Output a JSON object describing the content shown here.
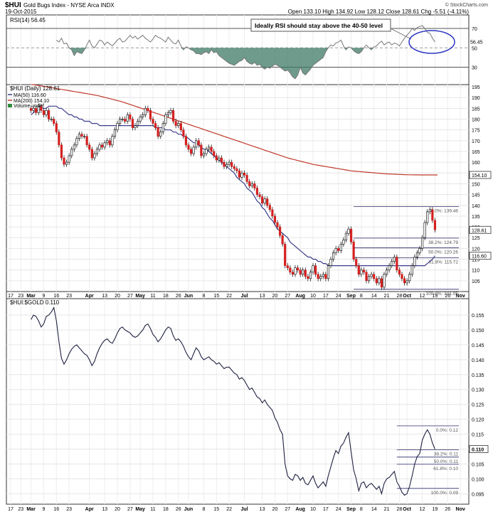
{
  "header": {
    "symbol": "$HUI",
    "name": "Gold Bugs Index - NYSE Arca INDX",
    "date": "19-Oct-2015",
    "ohlc": "Open 133.10  High 134.92  Low 128.12  Close 128.61  Chg -5.51 (-4.11%)",
    "watermark": "© StockCharts.com"
  },
  "annotation": "Ideally RSI should stay above the 40-50 level",
  "x_axis_labels": [
    {
      "label": "17",
      "i": 0
    },
    {
      "label": "23",
      "i": 4
    },
    {
      "label": "Mar",
      "i": 8
    },
    {
      "label": "9",
      "i": 13
    },
    {
      "label": "16",
      "i": 18
    },
    {
      "label": "23",
      "i": 23
    },
    {
      "label": "Apr",
      "i": 31
    },
    {
      "label": "13",
      "i": 37
    },
    {
      "label": "20",
      "i": 42
    },
    {
      "label": "27",
      "i": 47
    },
    {
      "label": "May",
      "i": 51
    },
    {
      "label": "11",
      "i": 56
    },
    {
      "label": "18",
      "i": 61
    },
    {
      "label": "26",
      "i": 66
    },
    {
      "label": "Jun",
      "i": 70
    },
    {
      "label": "8",
      "i": 76
    },
    {
      "label": "15",
      "i": 81
    },
    {
      "label": "22",
      "i": 86
    },
    {
      "label": "Jul",
      "i": 92
    },
    {
      "label": "13",
      "i": 99
    },
    {
      "label": "20",
      "i": 104
    },
    {
      "label": "27",
      "i": 109
    },
    {
      "label": "Aug",
      "i": 114
    },
    {
      "label": "10",
      "i": 119
    },
    {
      "label": "17",
      "i": 124
    },
    {
      "label": "24",
      "i": 129
    },
    {
      "label": "Sep",
      "i": 134
    },
    {
      "label": "8",
      "i": 138
    },
    {
      "label": "14",
      "i": 143
    },
    {
      "label": "21",
      "i": 148
    },
    {
      "label": "28",
      "i": 153
    },
    {
      "label": "Oct",
      "i": 156
    },
    {
      "label": "12",
      "i": 162
    },
    {
      "label": "19",
      "i": 167
    },
    {
      "label": "26",
      "i": 172
    },
    {
      "label": "Nov",
      "i": 177
    }
  ],
  "chart_data": [
    {
      "type": "line",
      "title": "RSI(14) 56.45",
      "ylim": [
        12,
        84
      ],
      "ticks": [
        30,
        50,
        70
      ],
      "reference_lines": [
        30,
        50,
        70
      ],
      "last_value": "56.45",
      "series": [
        {
          "name": "RSI(14)",
          "values": [
            58,
            56,
            60,
            54,
            55,
            50,
            48,
            42,
            46,
            45,
            44,
            48,
            53,
            58,
            52,
            50,
            54,
            58,
            57,
            53,
            56,
            54,
            52,
            55,
            58,
            60,
            56,
            57,
            60,
            63,
            60,
            62,
            59,
            61,
            63,
            60,
            58,
            56,
            59,
            63,
            61,
            60,
            58,
            56,
            61,
            58,
            55,
            54,
            58,
            52,
            48,
            51,
            50,
            48,
            47,
            44,
            44,
            43,
            45,
            46,
            44,
            48,
            45,
            46,
            42,
            40,
            38,
            36,
            34,
            33,
            32,
            34,
            36,
            37,
            40,
            36,
            34,
            33,
            35,
            32,
            33,
            30,
            28,
            30,
            29,
            31,
            33,
            32,
            30,
            28,
            26,
            27,
            24,
            20,
            18,
            22,
            30,
            24,
            22,
            25,
            28,
            32,
            34,
            36,
            38,
            40,
            46,
            50,
            53,
            52,
            55,
            56,
            58,
            52,
            48,
            51,
            50,
            47,
            45,
            44,
            46,
            50,
            53,
            50,
            48,
            51,
            52,
            55,
            57,
            53,
            55,
            56,
            53,
            55,
            54,
            52,
            56,
            60,
            63,
            66,
            70,
            68,
            71,
            72,
            73,
            70,
            66,
            65,
            60,
            56
          ]
        }
      ]
    },
    {
      "type": "candlestick",
      "title": "$HUI (Daily) 128.61",
      "legend": [
        "MA(50) 116.60",
        "MA(200) 154.10",
        "Volume undef"
      ],
      "ylim": [
        100,
        196
      ],
      "ticks": [
        105,
        110,
        115,
        120,
        125,
        130,
        135,
        140,
        145,
        150,
        155,
        160,
        165,
        170,
        175,
        180,
        185,
        190,
        195
      ],
      "fib_levels": [
        {
          "label": "0.0%: 139.46",
          "value": 139.46
        },
        {
          "label": "38.2%: 124.79",
          "value": 124.79
        },
        {
          "label": "50.0%: 120.26",
          "value": 120.26
        },
        {
          "label": "61.8%: 115.72",
          "value": 115.72
        },
        {
          "label": "100.0%: 101.05",
          "value": 101.05
        }
      ],
      "last_labels": [
        {
          "text": "154.10",
          "value": 154.1
        },
        {
          "text": "128.61",
          "value": 128.61
        },
        {
          "text": "116.60",
          "value": 116.6
        }
      ],
      "closes": [
        184,
        185,
        183,
        186,
        184,
        182,
        184,
        180,
        180,
        178,
        174,
        168,
        162,
        159,
        160,
        163,
        166,
        168,
        171,
        173,
        172,
        172,
        168,
        166,
        162,
        164,
        166,
        168,
        167,
        169,
        170,
        168,
        172,
        175,
        178,
        180,
        180,
        179,
        182,
        180,
        176,
        177,
        179,
        181,
        182,
        185,
        184,
        180,
        178,
        176,
        172,
        174,
        178,
        182,
        183,
        184,
        179,
        177,
        178,
        175,
        172,
        168,
        166,
        164,
        167,
        170,
        168,
        163,
        164,
        166,
        167,
        165,
        163,
        161,
        162,
        160,
        158,
        159,
        160,
        158,
        157,
        156,
        153,
        155,
        154,
        151,
        149,
        150,
        148,
        145,
        144,
        141,
        143,
        140,
        138,
        135,
        132,
        130,
        126,
        122,
        112,
        111,
        109,
        108,
        111,
        110,
        108,
        110,
        107,
        106,
        109,
        112,
        108,
        106,
        107,
        108,
        106,
        112,
        115,
        118,
        120,
        119,
        122,
        124,
        127,
        129,
        123,
        115,
        112,
        108,
        110,
        109,
        105,
        107,
        108,
        106,
        104,
        106,
        102,
        108,
        110,
        112,
        114,
        116,
        110,
        108,
        106,
        104,
        105,
        108,
        112,
        116,
        118,
        120,
        125,
        132,
        137,
        138,
        133,
        128.61
      ],
      "ma50": [
        182,
        183,
        184,
        184,
        185,
        185,
        185,
        186,
        186,
        186,
        186,
        185,
        185,
        184,
        183,
        182,
        182,
        181,
        181,
        180,
        180,
        179,
        179,
        179,
        178,
        178,
        178,
        177,
        177,
        177,
        177,
        177,
        177,
        177,
        177,
        177,
        177,
        177,
        177,
        177,
        177,
        177,
        177,
        177,
        177,
        177,
        177,
        177,
        177,
        176,
        176,
        176,
        176,
        175,
        175,
        175,
        174,
        174,
        173,
        173,
        172,
        172,
        171,
        170,
        169,
        169,
        168,
        167,
        166,
        166,
        165,
        164,
        163,
        162,
        161,
        160,
        159,
        158,
        157,
        156,
        155,
        153,
        152,
        151,
        150,
        148,
        147,
        146,
        144,
        142,
        141,
        139,
        138,
        136,
        134,
        133,
        131,
        129,
        128,
        127,
        126,
        125,
        123,
        122,
        121,
        120,
        119,
        118,
        117,
        116,
        116,
        115,
        115,
        114,
        114,
        113,
        113,
        112,
        112,
        112,
        112,
        112,
        112,
        112,
        112,
        112,
        112,
        112,
        112,
        112,
        112,
        112,
        112,
        112,
        112,
        112,
        112,
        112,
        112,
        112,
        112,
        112,
        112,
        112,
        112,
        112,
        112,
        112,
        112,
        112,
        112,
        112,
        112,
        112,
        112,
        112,
        113,
        114,
        115,
        116.6
      ],
      "ma200": [
        196,
        196,
        195.8,
        195.6,
        195.4,
        195.2,
        195,
        194.8,
        194.6,
        194.4,
        194.2,
        194,
        193.8,
        193.6,
        193.4,
        193.2,
        193,
        192.8,
        192.6,
        192.4,
        192.2,
        192,
        191.8,
        191.6,
        191.4,
        191.2,
        191,
        190.7,
        190.4,
        190.1,
        189.8,
        189.5,
        189.2,
        188.9,
        188.6,
        188.3,
        188,
        187.6,
        187.2,
        186.8,
        186.4,
        186,
        185.6,
        185.2,
        184.8,
        184.4,
        184,
        183.6,
        183.2,
        182.8,
        182.4,
        182,
        181.6,
        181.2,
        180.8,
        180.4,
        180,
        179.6,
        179.2,
        178.8,
        178.4,
        178,
        177.6,
        177.2,
        176.8,
        176.4,
        176,
        175.6,
        175.2,
        174.8,
        174.4,
        174,
        173.6,
        173.2,
        172.8,
        172.4,
        172,
        171.6,
        171.2,
        170.8,
        170.4,
        170,
        169.6,
        169.2,
        168.8,
        168.4,
        168,
        167.6,
        167.2,
        166.8,
        166.4,
        166,
        165.6,
        165.2,
        164.8,
        164.4,
        164,
        163.6,
        163.2,
        162.8,
        162.4,
        162,
        161.7,
        161.4,
        161.1,
        160.8,
        160.5,
        160.2,
        159.9,
        159.6,
        159.3,
        159,
        158.8,
        158.6,
        158.4,
        158.2,
        158,
        157.8,
        157.6,
        157.4,
        157.2,
        157,
        156.8,
        156.6,
        156.4,
        156.2,
        156,
        155.9,
        155.8,
        155.7,
        155.6,
        155.5,
        155.4,
        155.3,
        155.2,
        155.1,
        155,
        154.9,
        154.8,
        154.7,
        154.6,
        154.55,
        154.5,
        154.45,
        154.4,
        154.35,
        154.3,
        154.25,
        154.2,
        154.18,
        154.16,
        154.14,
        154.12,
        154.11,
        154.1,
        154.1,
        154.1,
        154.1,
        154.1,
        154.1,
        154.1
      ]
    },
    {
      "type": "line",
      "title": "$HUI:$GOLD 0.110",
      "ylim": [
        0.0915,
        0.1605
      ],
      "ticks": [
        0.095,
        0.1,
        0.105,
        0.11,
        0.115,
        0.12,
        0.125,
        0.13,
        0.135,
        0.14,
        0.145,
        0.15,
        0.155
      ],
      "tick_labels": [
        "0.095",
        "0.100",
        "0.105",
        "0.110",
        "0.115",
        "0.120",
        "0.125",
        "0.130",
        "0.135",
        "0.140",
        "0.145",
        "0.150",
        "0.155"
      ],
      "fib_levels": [
        {
          "label": "0.0%: 0.12",
          "value": 0.1178
        },
        {
          "label": "38.2%: 0.11",
          "value": 0.1098
        },
        {
          "label": "50.0%: 0.11",
          "value": 0.1073
        },
        {
          "label": "61.8%: 0.10",
          "value": 0.1049
        },
        {
          "label": "100.0%: 0.09",
          "value": 0.0968
        }
      ],
      "last_label": "0.110",
      "series": [
        {
          "name": "$HUI:$GOLD",
          "values": [
            0.1535,
            0.155,
            0.1545,
            0.153,
            0.151,
            0.152,
            0.1545,
            0.155,
            0.156,
            0.1575,
            0.153,
            0.146,
            0.1405,
            0.1385,
            0.14,
            0.142,
            0.1435,
            0.1445,
            0.145,
            0.144,
            0.143,
            0.142,
            0.1415,
            0.14,
            0.138,
            0.1395,
            0.142,
            0.144,
            0.1455,
            0.1465,
            0.147,
            0.146,
            0.1455,
            0.147,
            0.149,
            0.1505,
            0.151,
            0.15,
            0.1495,
            0.149,
            0.148,
            0.1475,
            0.148,
            0.149,
            0.15,
            0.1515,
            0.152,
            0.1505,
            0.1485,
            0.1475,
            0.146,
            0.147,
            0.1485,
            0.15,
            0.151,
            0.1505,
            0.148,
            0.1465,
            0.147,
            0.146,
            0.1445,
            0.1425,
            0.141,
            0.14,
            0.142,
            0.144,
            0.143,
            0.141,
            0.14,
            0.1405,
            0.141,
            0.14,
            0.1395,
            0.1385,
            0.139,
            0.138,
            0.137,
            0.1375,
            0.1375,
            0.1365,
            0.1355,
            0.135,
            0.1335,
            0.134,
            0.133,
            0.1315,
            0.13,
            0.1305,
            0.129,
            0.1275,
            0.127,
            0.1255,
            0.1265,
            0.125,
            0.124,
            0.123,
            0.1205,
            0.119,
            0.1165,
            0.115,
            0.105,
            0.101,
            0.1,
            0.0995,
            0.1015,
            0.101,
            0.0995,
            0.1005,
            0.0985,
            0.098,
            0.0995,
            0.101,
            0.0985,
            0.097,
            0.098,
            0.099,
            0.0975,
            0.101,
            0.104,
            0.107,
            0.1095,
            0.1085,
            0.111,
            0.112,
            0.114,
            0.1155,
            0.109,
            0.103,
            0.1,
            0.096,
            0.0985,
            0.099,
            0.097,
            0.098,
            0.0985,
            0.0975,
            0.0965,
            0.0975,
            0.095,
            0.0985,
            0.1,
            0.1005,
            0.1015,
            0.1025,
            0.099,
            0.0975,
            0.0955,
            0.0945,
            0.095,
            0.0975,
            0.101,
            0.105,
            0.1075,
            0.1085,
            0.113,
            0.115,
            0.1165,
            0.115,
            0.112,
            0.11
          ]
        }
      ]
    }
  ]
}
